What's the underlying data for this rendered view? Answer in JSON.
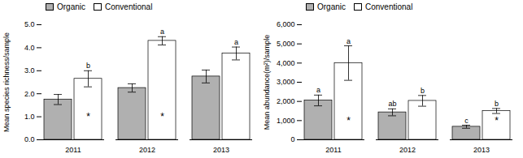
{
  "chart_data": [
    {
      "type": "bar",
      "categories": [
        "2011",
        "2012",
        "2013"
      ],
      "ylabel": "Mean species richness/sample",
      "series": [
        {
          "name": "Organic",
          "color": "#b0b0b0",
          "values": [
            1.75,
            2.25,
            2.75
          ],
          "errors": [
            0.22,
            0.18,
            0.28
          ]
        },
        {
          "name": "Conventional",
          "color": "#ffffff",
          "values": [
            2.65,
            4.3,
            3.75
          ],
          "errors": [
            0.35,
            0.18,
            0.28
          ],
          "letters": [
            "b",
            "a",
            "a"
          ]
        }
      ],
      "annotations": [
        {
          "text": "*",
          "category": "2011",
          "series": "Conventional",
          "y": 1.0
        },
        {
          "text": "*",
          "category": "2012",
          "series": "Conventional",
          "y": 1.0
        }
      ],
      "ylim": [
        0,
        5
      ],
      "yticks": [
        0,
        1,
        2,
        3,
        4,
        5
      ],
      "legend": "upper left"
    },
    {
      "type": "bar",
      "categories": [
        "2011",
        "2012",
        "2013"
      ],
      "ylabel": "Mean abundance(m²)/sample",
      "series": [
        {
          "name": "Organic",
          "color": "#b0b0b0",
          "values": [
            2050,
            1430,
            680
          ],
          "errors": [
            280,
            180,
            80
          ],
          "letters": [
            "a",
            "ab",
            "c"
          ]
        },
        {
          "name": "Conventional",
          "color": "#ffffff",
          "values": [
            4000,
            2030,
            1500
          ],
          "errors": [
            900,
            280,
            130
          ],
          "letters": [
            "a",
            "b",
            "b"
          ]
        }
      ],
      "annotations": [
        {
          "text": "*",
          "category": "2011",
          "series": "Conventional",
          "y": 1000
        },
        {
          "text": "*",
          "category": "2013",
          "series": "Conventional",
          "y": 1000
        }
      ],
      "ylim": [
        0,
        6000
      ],
      "yticks": [
        0,
        1000,
        2000,
        3000,
        4000,
        5000,
        6000
      ],
      "legend": "upper left"
    }
  ]
}
